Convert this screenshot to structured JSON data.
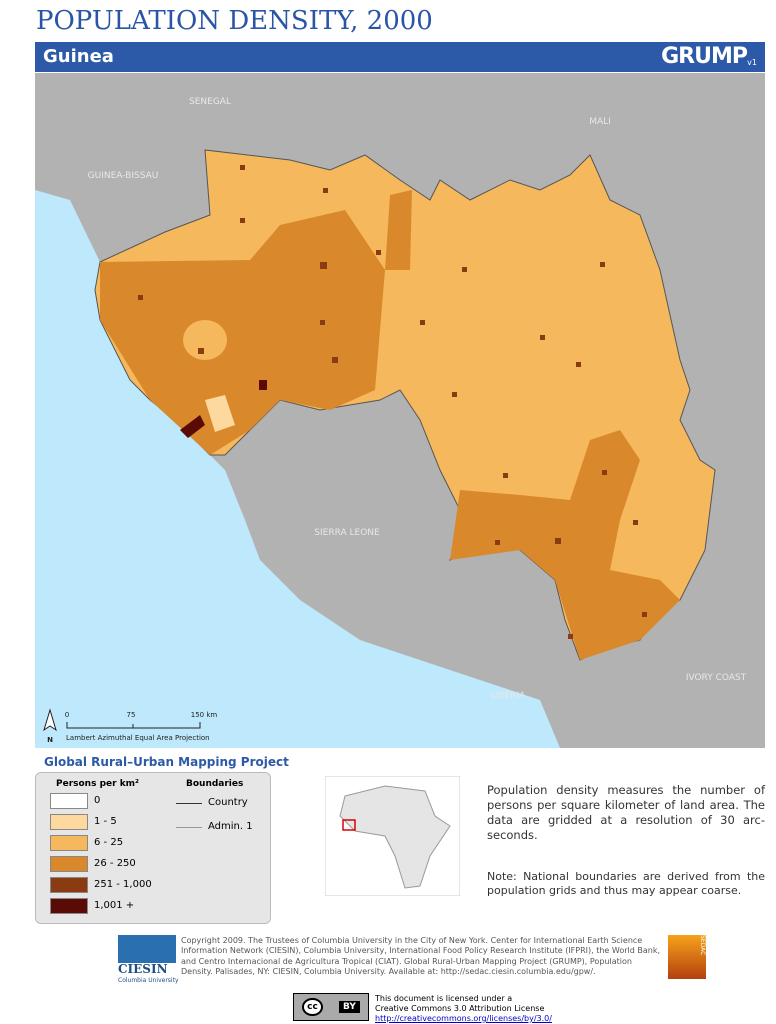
{
  "header": {
    "title": "POPULATION DENSITY, 2000",
    "country": "Guinea",
    "logo": "GRUMP",
    "logo_version": "v1"
  },
  "map": {
    "labels": [
      "SENEGAL",
      "MALI",
      "GUINEA-BISSAU",
      "SIERRA LEONE",
      "LIBERIA",
      "IVORY COAST"
    ],
    "scale": {
      "ticks": [
        "0",
        "75",
        "150 km"
      ],
      "north": "N",
      "projection": "Lambert Azimuthal Equal Area Projection"
    }
  },
  "legend": {
    "project": "Global Rural–Urban Mapping Project",
    "density_title": "Persons per km²",
    "classes": [
      "0",
      "1 - 5",
      "6 - 25",
      "26 - 250",
      "251 - 1,000",
      "1,001 +"
    ],
    "boundaries_title": "Boundaries",
    "boundaries": [
      "Country",
      "Admin. 1"
    ]
  },
  "description": [
    "Population density measures the number of persons per square kilometer of land area. The data are gridded at a resolution of 30 arc-seconds.",
    "Note: National boundaries are derived from the population grids and thus may appear coarse."
  ],
  "footer": {
    "copyright": "Copyright 2009. The Trustees of Columbia University in the City of New York. Center for International Earth Science Information Network (CIESIN), Columbia University, International Food Policy Research Institute (IFPRI), the World Bank, and Centro Internacional de Agricultura Tropical (CIAT). Global Rural-Urban Mapping Project (GRUMP), Population Density. Palisades, NY: CIESIN, Columbia University. Available at: http://sedac.ciesin.columbia.edu/gpw/.",
    "ciesin": "CIESIN",
    "ciesin_sub": "Columbia University",
    "sedac": "SEDAC",
    "license": [
      "This document is licensed under a",
      "Creative Commons 3.0 Attribution License",
      "http://creativecommons.org/licenses/by/3.0/"
    ],
    "cc": "cc",
    "by": "BY"
  }
}
